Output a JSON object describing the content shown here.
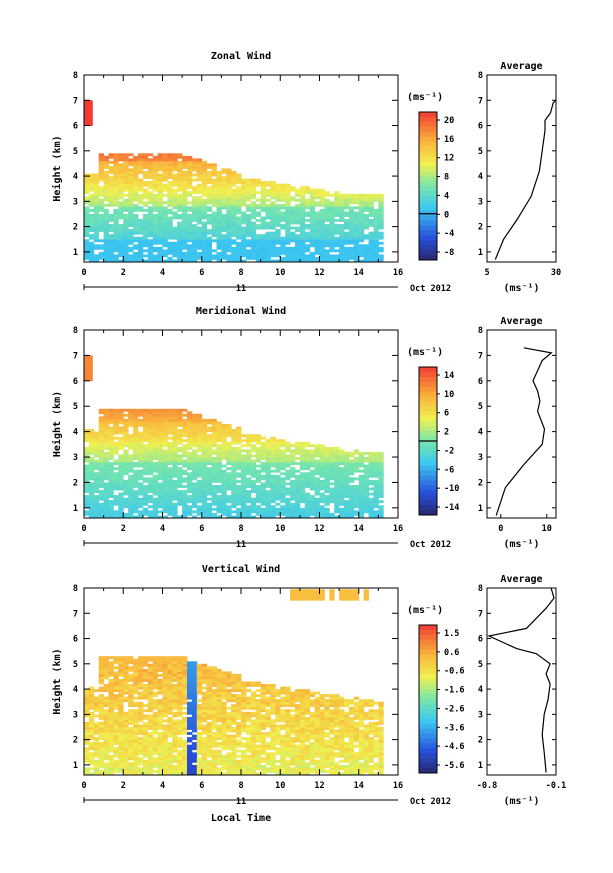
{
  "chart_data": [
    {
      "type": "heatmap",
      "title": "Zonal Wind",
      "ylabel": "Height (km)",
      "xlabel": "",
      "x_ticks": [
        "0",
        "2",
        "4",
        "6",
        "8",
        "10",
        "12",
        "14",
        "16"
      ],
      "y_ticks": [
        "1",
        "2",
        "3",
        "4",
        "5",
        "6",
        "7",
        "8"
      ],
      "xlim": [
        0,
        16
      ],
      "ylim": [
        0.6,
        8
      ],
      "date_tick": "11",
      "date_label": "Oct 2012",
      "colorbar": {
        "unit": "(ms⁻¹)",
        "labels": [
          "20",
          "16",
          "12",
          "8",
          "4",
          "0",
          "-4",
          "-8"
        ],
        "range": [
          -10,
          22
        ],
        "zero_line": 0
      },
      "field": {
        "ramp": "gradient",
        "bands": [
          [
            0.6,
            1.5,
            1,
            1
          ],
          [
            1.5,
            2.8,
            3,
            6
          ],
          [
            2.8,
            3.6,
            8,
            12
          ],
          [
            3.6,
            4.6,
            12,
            16
          ],
          [
            4.6,
            5.8,
            18,
            21
          ]
        ],
        "top_left": [
          6,
          7,
          6.9,
          22
        ],
        "max_height": 4.8,
        "top_end": 3.3,
        "end": 15.2
      },
      "avg_profile": {
        "title": "Average",
        "x_ticks": [
          "5",
          "30"
        ],
        "xlim": [
          5,
          30
        ],
        "unit": "(ms⁻¹)",
        "points": [
          [
            8,
            0.7
          ],
          [
            11,
            1.5
          ],
          [
            16,
            2.3
          ],
          [
            21,
            3.2
          ],
          [
            24,
            4.2
          ],
          [
            25,
            5.0
          ],
          [
            26,
            5.8
          ],
          [
            26,
            6.2
          ],
          [
            28,
            6.5
          ],
          [
            29,
            6.9
          ],
          [
            30,
            7.0
          ]
        ]
      }
    },
    {
      "type": "heatmap",
      "title": "Meridional Wind",
      "ylabel": "Height (km)",
      "xlabel": "",
      "x_ticks": [
        "0",
        "2",
        "4",
        "6",
        "8",
        "10",
        "12",
        "14",
        "16"
      ],
      "y_ticks": [
        "1",
        "2",
        "3",
        "4",
        "5",
        "6",
        "7",
        "8"
      ],
      "xlim": [
        0,
        16
      ],
      "ylim": [
        0.6,
        8
      ],
      "date_tick": "11",
      "date_label": "Oct 2012",
      "colorbar": {
        "unit": "(ms⁻¹)",
        "labels": [
          "14",
          "10",
          "6",
          "2",
          "-2",
          "-6",
          "-10",
          "-14"
        ],
        "range": [
          -16,
          16
        ],
        "zero_line": 0
      },
      "field": {
        "ramp": "gradient",
        "bands": [
          [
            0.6,
            1.6,
            -4,
            -2
          ],
          [
            1.6,
            2.8,
            -2,
            0
          ],
          [
            2.8,
            3.6,
            2,
            5
          ],
          [
            3.6,
            4.4,
            6,
            9
          ],
          [
            4.4,
            5.0,
            10,
            12
          ]
        ],
        "top_left": [
          6,
          7,
          6.9,
          12
        ],
        "max_height": 4.8,
        "top_end": 3.2,
        "end": 15.2
      },
      "avg_profile": {
        "title": "Average",
        "x_ticks": [
          "0",
          "10"
        ],
        "xlim": [
          -3,
          12
        ],
        "unit": "(ms⁻¹)",
        "points": [
          [
            -1,
            0.7
          ],
          [
            1,
            1.8
          ],
          [
            5,
            2.7
          ],
          [
            9,
            3.5
          ],
          [
            9.5,
            4.1
          ],
          [
            8,
            4.8
          ],
          [
            8.5,
            5.2
          ],
          [
            8,
            5.6
          ],
          [
            7,
            6.0
          ],
          [
            8,
            6.4
          ],
          [
            9,
            6.8
          ],
          [
            11,
            7.1
          ],
          [
            5,
            7.3
          ]
        ]
      }
    },
    {
      "type": "heatmap",
      "title": "Vertical Wind",
      "ylabel": "Height (km)",
      "xlabel": "Local Time",
      "x_ticks": [
        "0",
        "2",
        "4",
        "6",
        "8",
        "10",
        "12",
        "14",
        "16"
      ],
      "y_ticks": [
        "1",
        "2",
        "3",
        "4",
        "5",
        "6",
        "7",
        "8"
      ],
      "xlim": [
        0,
        16
      ],
      "ylim": [
        0.6,
        8
      ],
      "date_tick": "11",
      "date_label": "Oct 2012",
      "colorbar": {
        "unit": "(ms⁻¹)",
        "labels": [
          "1.5",
          "0.6",
          "-0.6",
          "-1.6",
          "-2.6",
          "-3.6",
          "-4.6",
          "-5.6"
        ],
        "range": [
          -6.2,
          2.2
        ],
        "zero_line": null
      },
      "field": {
        "ramp": "gradient",
        "bands": [
          [
            0.6,
            5.0,
            -0.8,
            0.4
          ]
        ],
        "top_left": [
          5,
          7,
          5.2,
          -0.6
        ],
        "max_height": 5.2,
        "top_end": 3.5,
        "end": 15.2
      },
      "avg_profile": {
        "title": "Average",
        "x_ticks": [
          "-0.8",
          "-0.1"
        ],
        "xlim": [
          -0.8,
          -0.1
        ],
        "unit": "(ms⁻¹)",
        "points": [
          [
            -0.2,
            0.7
          ],
          [
            -0.22,
            1.5
          ],
          [
            -0.24,
            2.2
          ],
          [
            -0.22,
            3.0
          ],
          [
            -0.18,
            3.6
          ],
          [
            -0.16,
            4.2
          ],
          [
            -0.2,
            4.6
          ],
          [
            -0.16,
            5.0
          ],
          [
            -0.3,
            5.4
          ],
          [
            -0.5,
            5.6
          ],
          [
            -0.78,
            6.1
          ],
          [
            -0.4,
            6.4
          ],
          [
            -0.3,
            6.8
          ],
          [
            -0.2,
            7.2
          ],
          [
            -0.12,
            7.6
          ],
          [
            -0.15,
            8.0
          ]
        ]
      }
    }
  ]
}
